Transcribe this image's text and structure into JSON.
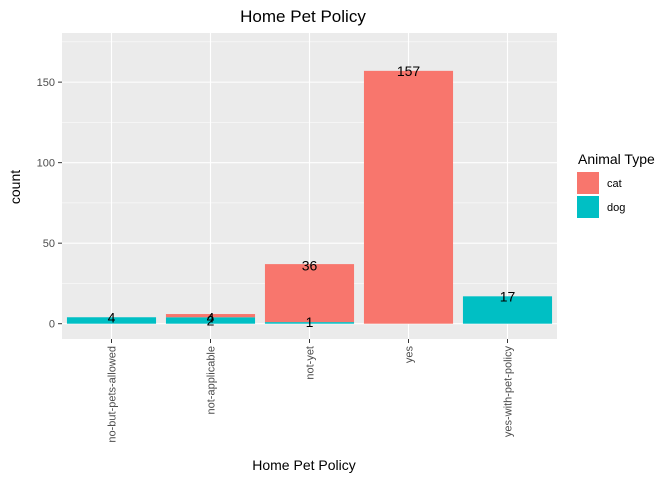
{
  "chart_data": {
    "type": "bar",
    "stacked": true,
    "title": "Home Pet Policy",
    "xlabel": "Home Pet Policy",
    "ylabel": "count",
    "categories": [
      "no-but-pets-allowed",
      "not-applicable",
      "not-yet",
      "yes",
      "yes-with-pet-policy"
    ],
    "series": [
      {
        "name": "cat",
        "values": [
          0,
          2,
          36,
          157,
          0
        ],
        "color": "#F8766D"
      },
      {
        "name": "dog",
        "values": [
          4,
          4,
          1,
          0,
          17
        ],
        "color": "#00BFC4"
      }
    ],
    "data_labels": [
      {
        "category": "no-but-pets-allowed",
        "series": "dog",
        "text": "4"
      },
      {
        "category": "not-applicable",
        "series": "cat",
        "text": "2"
      },
      {
        "category": "not-applicable",
        "series": "dog",
        "text": "4"
      },
      {
        "category": "not-yet",
        "series": "cat",
        "text": "36"
      },
      {
        "category": "not-yet",
        "series": "dog",
        "text": "1"
      },
      {
        "category": "yes",
        "series": "cat",
        "text": "157"
      },
      {
        "category": "yes-with-pet-policy",
        "series": "dog",
        "text": "17"
      }
    ],
    "yticks": [
      0,
      50,
      100,
      150
    ],
    "ylim": [
      -9.5,
      180.5
    ],
    "grid": true,
    "legend": {
      "title": "Animal Type",
      "position": "right",
      "items": [
        "cat",
        "dog"
      ]
    },
    "panel_background": "#EBEBEB"
  }
}
